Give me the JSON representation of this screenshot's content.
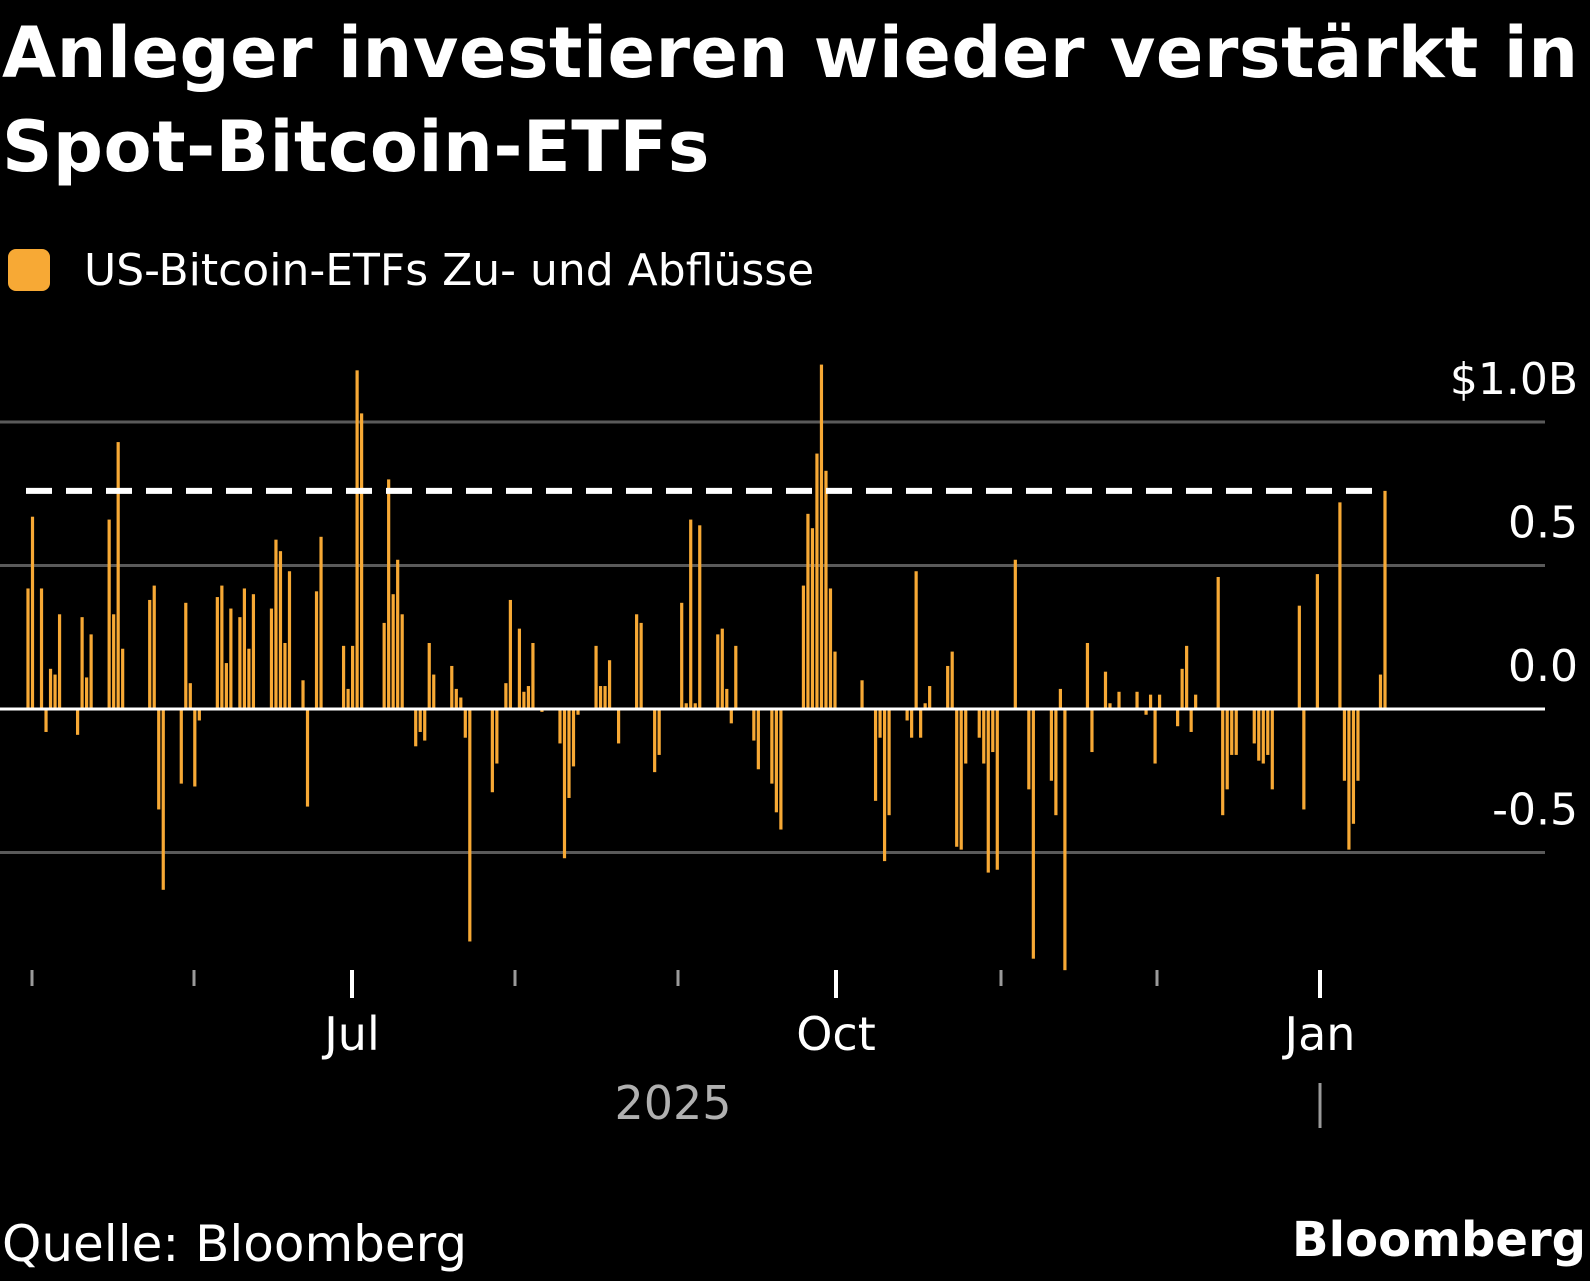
{
  "title": "Anleger investieren wieder verstärkt in Spot-Bitcoin-ETFs",
  "legend": {
    "label": "US-Bitcoin-ETFs Zu- und Abflüsse",
    "color": "#f7a935"
  },
  "footer": {
    "source": "Quelle: Bloomberg",
    "brand": "Bloomberg"
  },
  "chart_data": {
    "type": "bar",
    "ylim": [
      -0.9,
      1.2
    ],
    "yticks": [
      {
        "value": 1.0,
        "label": "$1.0B"
      },
      {
        "value": 0.5,
        "label": "0.5"
      },
      {
        "value": 0.0,
        "label": "0.0"
      },
      {
        "value": -0.5,
        "label": "-0.5"
      }
    ],
    "reference_line": {
      "value": 0.76,
      "style": "dashed",
      "color": "#ffffff"
    },
    "xticks": [
      {
        "label": "",
        "major": false
      },
      {
        "label": "",
        "major": false
      },
      {
        "label": "Jul",
        "major": true
      },
      {
        "label": "",
        "major": false
      },
      {
        "label": "",
        "major": false
      },
      {
        "label": "Oct",
        "major": true
      },
      {
        "label": "",
        "major": false
      },
      {
        "label": "",
        "major": false
      },
      {
        "label": "Jan",
        "major": true
      }
    ],
    "year_label": "2025",
    "bar_color": "#f7a935",
    "series": [
      {
        "values": [
          0.42,
          0.67,
          0.0,
          0.42,
          -0.08,
          0.14,
          0.12,
          0.33,
          0.0,
          0.0,
          0.0,
          -0.09,
          0.32,
          0.11,
          0.26,
          0.0,
          0.0,
          0.0,
          0.66,
          0.33,
          0.93,
          0.21,
          0.0,
          0.0,
          0.0,
          0.0,
          0.0,
          0.38,
          0.43,
          -0.35,
          -0.63,
          0.0,
          0.0,
          0.0,
          -0.26,
          0.37,
          0.09,
          -0.27,
          -0.04,
          0.0,
          0.0,
          0.0,
          0.39,
          0.43,
          0.16,
          0.35,
          0.0,
          0.32,
          0.42,
          0.21,
          0.4,
          0.0,
          0.0,
          0.0,
          0.35,
          0.59,
          0.55,
          0.23,
          0.48,
          0.0,
          0.0,
          0.1,
          -0.34,
          0.0,
          0.41,
          0.6,
          0.0,
          0.0,
          0.0,
          0.0,
          0.22,
          0.07,
          0.22,
          1.18,
          1.03,
          0.0,
          0.0,
          0.0,
          0.0,
          0.3,
          0.8,
          0.4,
          0.52,
          0.33,
          0.0,
          0.0,
          -0.13,
          -0.08,
          -0.11,
          0.23,
          0.12,
          0.0,
          0.0,
          0.0,
          0.15,
          0.07,
          0.04,
          -0.1,
          -0.81,
          0.0,
          0.0,
          0.0,
          0.0,
          -0.29,
          -0.19,
          0.0,
          0.09,
          0.38,
          0.0,
          0.28,
          0.06,
          0.08,
          0.23,
          0.0,
          -0.01,
          0.0,
          0.0,
          0.0,
          -0.12,
          -0.52,
          -0.31,
          -0.2,
          -0.02,
          0.0,
          0.0,
          0.0,
          0.22,
          0.08,
          0.08,
          0.17,
          0.0,
          -0.12,
          0.0,
          0.0,
          0.0,
          0.33,
          0.3,
          0.0,
          0.0,
          -0.22,
          -0.16,
          0.0,
          0.0,
          0.0,
          0.0,
          0.37,
          0.02,
          0.66,
          0.02,
          0.64,
          0.0,
          0.0,
          0.0,
          0.26,
          0.28,
          0.07,
          -0.05,
          0.22,
          0.0,
          0.0,
          0.0,
          -0.11,
          -0.21,
          0.0,
          0.0,
          -0.26,
          -0.36,
          -0.42,
          0.0,
          0.0,
          0.0,
          0.0,
          0.43,
          0.68,
          0.63,
          0.89,
          1.2,
          0.83,
          0.42,
          0.2,
          0.0,
          0.0,
          0.0,
          0.0,
          0.0,
          0.1,
          0.0,
          0.0,
          -0.32,
          -0.1,
          -0.53,
          -0.37,
          0.0,
          0.0,
          0.0,
          -0.04,
          -0.1,
          0.48,
          -0.1,
          0.02,
          0.08,
          0.0,
          0.0,
          0.0,
          0.15,
          0.2,
          -0.48,
          -0.49,
          -0.19,
          0.0,
          0.0,
          -0.1,
          -0.19,
          -0.57,
          -0.15,
          -0.56,
          0.0,
          0.0,
          0.0,
          0.52,
          0.0,
          0.0,
          -0.28,
          -0.87,
          0.0,
          0.0,
          0.0,
          -0.25,
          -0.37,
          0.07,
          -0.91,
          0.0,
          0.0,
          0.0,
          0.0,
          0.23,
          -0.15,
          0.0,
          0.0,
          0.13,
          0.02,
          0.0,
          0.06,
          0.0,
          0.0,
          0.0,
          0.06,
          0.0,
          -0.02,
          0.05,
          -0.19,
          0.05,
          0.0,
          0.0,
          0.0,
          -0.06,
          0.14,
          0.22,
          -0.08,
          0.05,
          0.0,
          0.0,
          0.0,
          0.0,
          0.46,
          -0.37,
          -0.28,
          -0.16,
          -0.16,
          0.0,
          0.0,
          0.0,
          -0.12,
          -0.18,
          -0.19,
          -0.16,
          -0.28,
          0.0,
          0.0,
          0.0,
          0.0,
          0.0,
          0.36,
          -0.35,
          0.0,
          0.0,
          0.47,
          0.0,
          0.0,
          0.0,
          0.0,
          0.72,
          -0.25,
          -0.49,
          -0.4,
          -0.25,
          0.0,
          0.0,
          0.0,
          0.0,
          0.12,
          0.76
        ]
      }
    ]
  }
}
